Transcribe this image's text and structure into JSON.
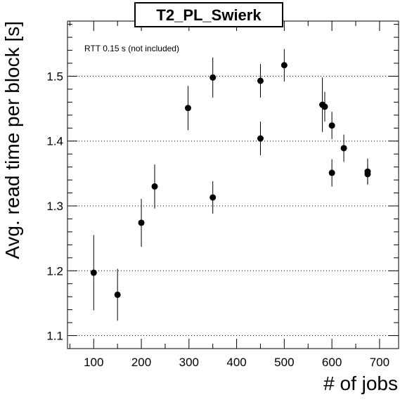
{
  "chart_data": {
    "type": "scatter",
    "title": "T2_PL_Swierk",
    "xlabel": "# of jobs",
    "ylabel": "Avg. read time per block [s]",
    "annotation": "RTT 0.15 s (not included)",
    "xlim": [
      45,
      740
    ],
    "ylim": [
      1.08,
      1.585
    ],
    "x_ticks": [
      100,
      200,
      300,
      400,
      500,
      600,
      700
    ],
    "x_tick_labels": [
      "100",
      "200",
      "300",
      "400",
      "500",
      "600",
      "700"
    ],
    "y_ticks": [
      1.1,
      1.2,
      1.3,
      1.4,
      1.5
    ],
    "y_tick_labels": [
      "1.1",
      "1.2",
      "1.3",
      "1.4",
      "1.5"
    ],
    "grid": "horizontal dotted at major y ticks",
    "marker_color": "#000000",
    "points": [
      {
        "x": 100,
        "y": 1.197,
        "err": 0.058
      },
      {
        "x": 150,
        "y": 1.163,
        "err": 0.04
      },
      {
        "x": 200,
        "y": 1.274,
        "err": 0.037
      },
      {
        "x": 228,
        "y": 1.33,
        "err": 0.034
      },
      {
        "x": 298,
        "y": 1.451,
        "err": 0.034
      },
      {
        "x": 350,
        "y": 1.498,
        "err": 0.031
      },
      {
        "x": 350,
        "y": 1.313,
        "err": 0.025
      },
      {
        "x": 450,
        "y": 1.493,
        "err": 0.026
      },
      {
        "x": 450,
        "y": 1.404,
        "err": 0.026
      },
      {
        "x": 500,
        "y": 1.517,
        "err": 0.025
      },
      {
        "x": 580,
        "y": 1.456,
        "err": 0.042
      },
      {
        "x": 585,
        "y": 1.453,
        "err": 0.023
      },
      {
        "x": 600,
        "y": 1.424,
        "err": 0.021
      },
      {
        "x": 600,
        "y": 1.351,
        "err": 0.021
      },
      {
        "x": 625,
        "y": 1.389,
        "err": 0.021
      },
      {
        "x": 675,
        "y": 1.353,
        "err": 0.02
      },
      {
        "x": 675,
        "y": 1.349,
        "err": 0.016
      }
    ]
  }
}
